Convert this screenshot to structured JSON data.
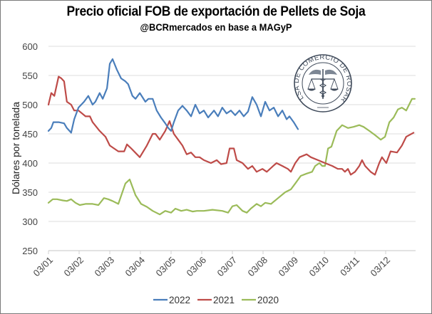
{
  "chart_data": {
    "type": "line",
    "title": "Precio oficial FOB de exportación de Pellets de Soja",
    "subtitle": "@BCRmercados en base a MAGyP",
    "xlabel": "",
    "ylabel": "Dólares por tonelada",
    "ylim": [
      250,
      600
    ],
    "yticks": [
      250,
      300,
      350,
      400,
      450,
      500,
      550,
      600
    ],
    "xlim": [
      0,
      11.95
    ],
    "x_unit": "months since 03/01",
    "xtick_labels": [
      "03/01",
      "03/02",
      "03/03",
      "03/04",
      "03/05",
      "03/06",
      "03/07",
      "03/08",
      "03/09",
      "03/10",
      "03/11",
      "03/12"
    ],
    "grid": true,
    "legend_position": "bottom",
    "logo": "BOLSA DE COMERCIO DE ROSARIO",
    "series": [
      {
        "name": "2022",
        "color": "#4a7ebb",
        "x": [
          0,
          0.09,
          0.16,
          0.33,
          0.51,
          0.6,
          0.74,
          0.84,
          0.98,
          1.16,
          1.3,
          1.44,
          1.53,
          1.67,
          1.77,
          1.91,
          2.0,
          2.09,
          2.23,
          2.37,
          2.51,
          2.6,
          2.74,
          2.84,
          2.98,
          3.16,
          3.26,
          3.4,
          3.53,
          3.67,
          3.81,
          3.91,
          4.0,
          4.09,
          4.23,
          4.37,
          4.51,
          4.65,
          4.79,
          4.93,
          5.07,
          5.21,
          5.4,
          5.53,
          5.67,
          5.81,
          5.95,
          6.09,
          6.23,
          6.37,
          6.51,
          6.65,
          6.79,
          6.93,
          7.07,
          7.21,
          7.35,
          7.49,
          7.63,
          7.77,
          7.86,
          8.0,
          8.14
        ],
        "values": [
          455,
          460,
          470,
          470,
          468,
          460,
          452,
          475,
          495,
          505,
          515,
          500,
          505,
          520,
          510,
          528,
          570,
          578,
          560,
          545,
          540,
          535,
          515,
          510,
          520,
          505,
          510,
          510,
          490,
          478,
          468,
          460,
          455,
          470,
          490,
          498,
          490,
          480,
          500,
          485,
          490,
          478,
          490,
          480,
          495,
          485,
          490,
          482,
          490,
          480,
          488,
          513,
          500,
          480,
          505,
          490,
          495,
          480,
          490,
          475,
          480,
          470,
          458
        ]
      },
      {
        "name": "2021",
        "color": "#be4b48",
        "x": [
          0,
          0.09,
          0.19,
          0.33,
          0.42,
          0.51,
          0.6,
          0.74,
          0.84,
          0.98,
          1.21,
          1.35,
          1.44,
          1.67,
          1.86,
          2.0,
          2.14,
          2.28,
          2.47,
          2.56,
          2.7,
          2.98,
          3.21,
          3.4,
          3.49,
          3.63,
          3.81,
          3.95,
          4.09,
          4.23,
          4.37,
          4.51,
          4.65,
          4.79,
          4.93,
          5.07,
          5.3,
          5.49,
          5.63,
          5.81,
          5.91,
          6.05,
          6.14,
          6.33,
          6.51,
          6.65,
          6.79,
          6.98,
          7.12,
          7.33,
          7.44,
          7.63,
          7.81,
          7.91,
          8.05,
          8.19,
          8.42,
          8.56,
          8.79,
          9.02,
          9.26,
          9.44,
          9.58,
          9.67,
          9.77,
          9.86,
          10.0,
          10.14,
          10.23,
          10.33,
          10.51,
          10.65,
          10.79,
          10.88,
          11.02,
          11.16,
          11.37,
          11.53,
          11.67,
          11.91
        ],
        "values": [
          500,
          520,
          515,
          548,
          545,
          540,
          505,
          500,
          490,
          490,
          480,
          480,
          470,
          455,
          445,
          430,
          425,
          420,
          420,
          432,
          425,
          410,
          430,
          450,
          450,
          440,
          455,
          472,
          450,
          440,
          430,
          415,
          418,
          410,
          410,
          405,
          400,
          405,
          398,
          400,
          425,
          425,
          405,
          400,
          390,
          395,
          385,
          390,
          385,
          395,
          400,
          395,
          390,
          385,
          400,
          410,
          415,
          410,
          405,
          400,
          395,
          390,
          390,
          385,
          390,
          380,
          385,
          395,
          405,
          395,
          385,
          380,
          400,
          410,
          400,
          420,
          418,
          430,
          445,
          452
        ]
      },
      {
        "name": "2020",
        "color": "#9bbb59",
        "x": [
          0,
          0.14,
          0.28,
          0.47,
          0.6,
          0.74,
          0.88,
          1.02,
          1.21,
          1.44,
          1.63,
          1.81,
          1.95,
          2.09,
          2.28,
          2.51,
          2.65,
          2.84,
          3.02,
          3.21,
          3.4,
          3.63,
          3.81,
          4.0,
          4.14,
          4.33,
          4.51,
          4.7,
          4.84,
          5.07,
          5.35,
          5.67,
          5.86,
          6.0,
          6.14,
          6.33,
          6.47,
          6.6,
          6.79,
          6.93,
          7.07,
          7.26,
          7.49,
          7.72,
          7.91,
          8.05,
          8.23,
          8.42,
          8.6,
          8.7,
          8.84,
          8.93,
          9.02,
          9.12,
          9.23,
          9.37,
          9.4,
          9.58,
          9.77,
          9.95,
          10.14,
          10.28,
          10.47,
          10.65,
          10.84,
          10.98,
          11.12,
          11.26,
          11.4,
          11.53,
          11.67,
          11.86,
          11.95
        ],
        "values": [
          332,
          338,
          338,
          336,
          335,
          338,
          332,
          328,
          330,
          330,
          328,
          340,
          338,
          335,
          330,
          365,
          372,
          345,
          330,
          325,
          318,
          312,
          318,
          315,
          322,
          318,
          320,
          317,
          318,
          318,
          320,
          318,
          315,
          326,
          328,
          318,
          315,
          322,
          330,
          326,
          332,
          330,
          340,
          350,
          355,
          365,
          378,
          382,
          385,
          395,
          400,
          395,
          395,
          425,
          428,
          450,
          455,
          465,
          460,
          462,
          465,
          462,
          455,
          448,
          440,
          445,
          470,
          478,
          492,
          495,
          490,
          510,
          510
        ]
      }
    ]
  }
}
